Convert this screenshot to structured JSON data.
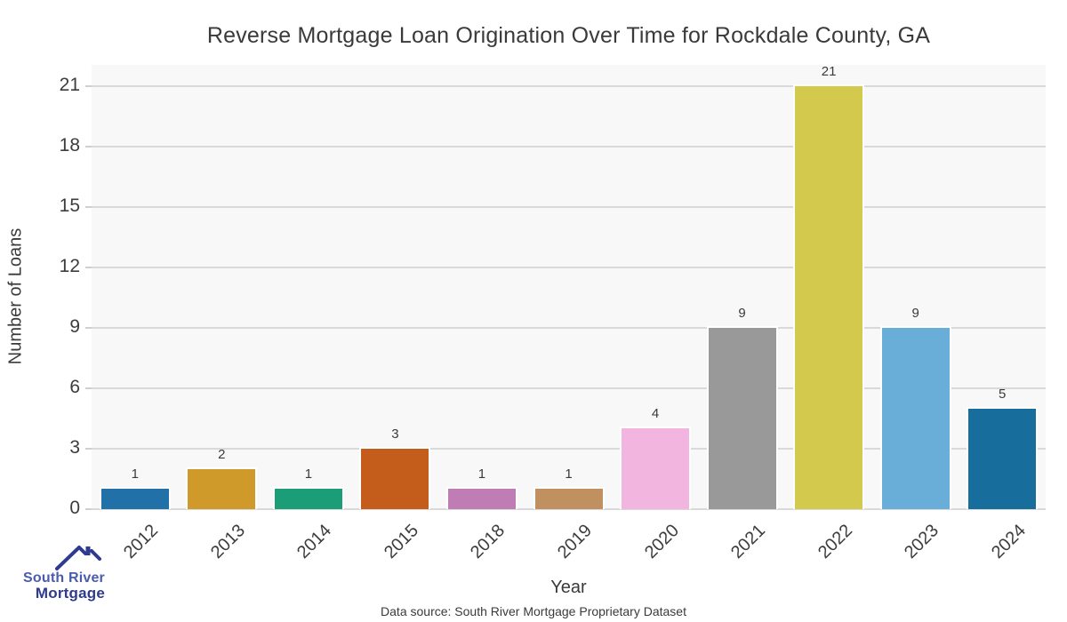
{
  "chart_data": {
    "type": "bar",
    "title": "Reverse Mortgage Loan Origination Over Time for Rockdale County, GA",
    "xlabel": "Year",
    "ylabel": "Number of Loans",
    "categories": [
      "2012",
      "2013",
      "2014",
      "2015",
      "2018",
      "2019",
      "2020",
      "2021",
      "2022",
      "2023",
      "2024"
    ],
    "values": [
      1,
      2,
      1,
      3,
      1,
      1,
      4,
      9,
      21,
      9,
      5
    ],
    "bar_colors": [
      "#2171a8",
      "#d09a2b",
      "#1b9e77",
      "#c45c1b",
      "#c07cb5",
      "#c19060",
      "#f2b5e0",
      "#999999",
      "#d3c94c",
      "#68aed8",
      "#176d9c"
    ],
    "yticks": [
      0,
      3,
      6,
      9,
      12,
      15,
      18,
      21
    ],
    "ylim": [
      0,
      22.1
    ],
    "grid": "horizontal",
    "legend": "none",
    "panel_background": "#f8f8f8",
    "grid_color": "#d9d9d9",
    "bar_edge_color": "#ffffff"
  },
  "footer": {
    "source": "Data source: South River Mortgage Proprietary Dataset"
  },
  "branding": {
    "line1": "South River",
    "line2": "Mortgage",
    "logo_color": "#2e3b8f"
  }
}
